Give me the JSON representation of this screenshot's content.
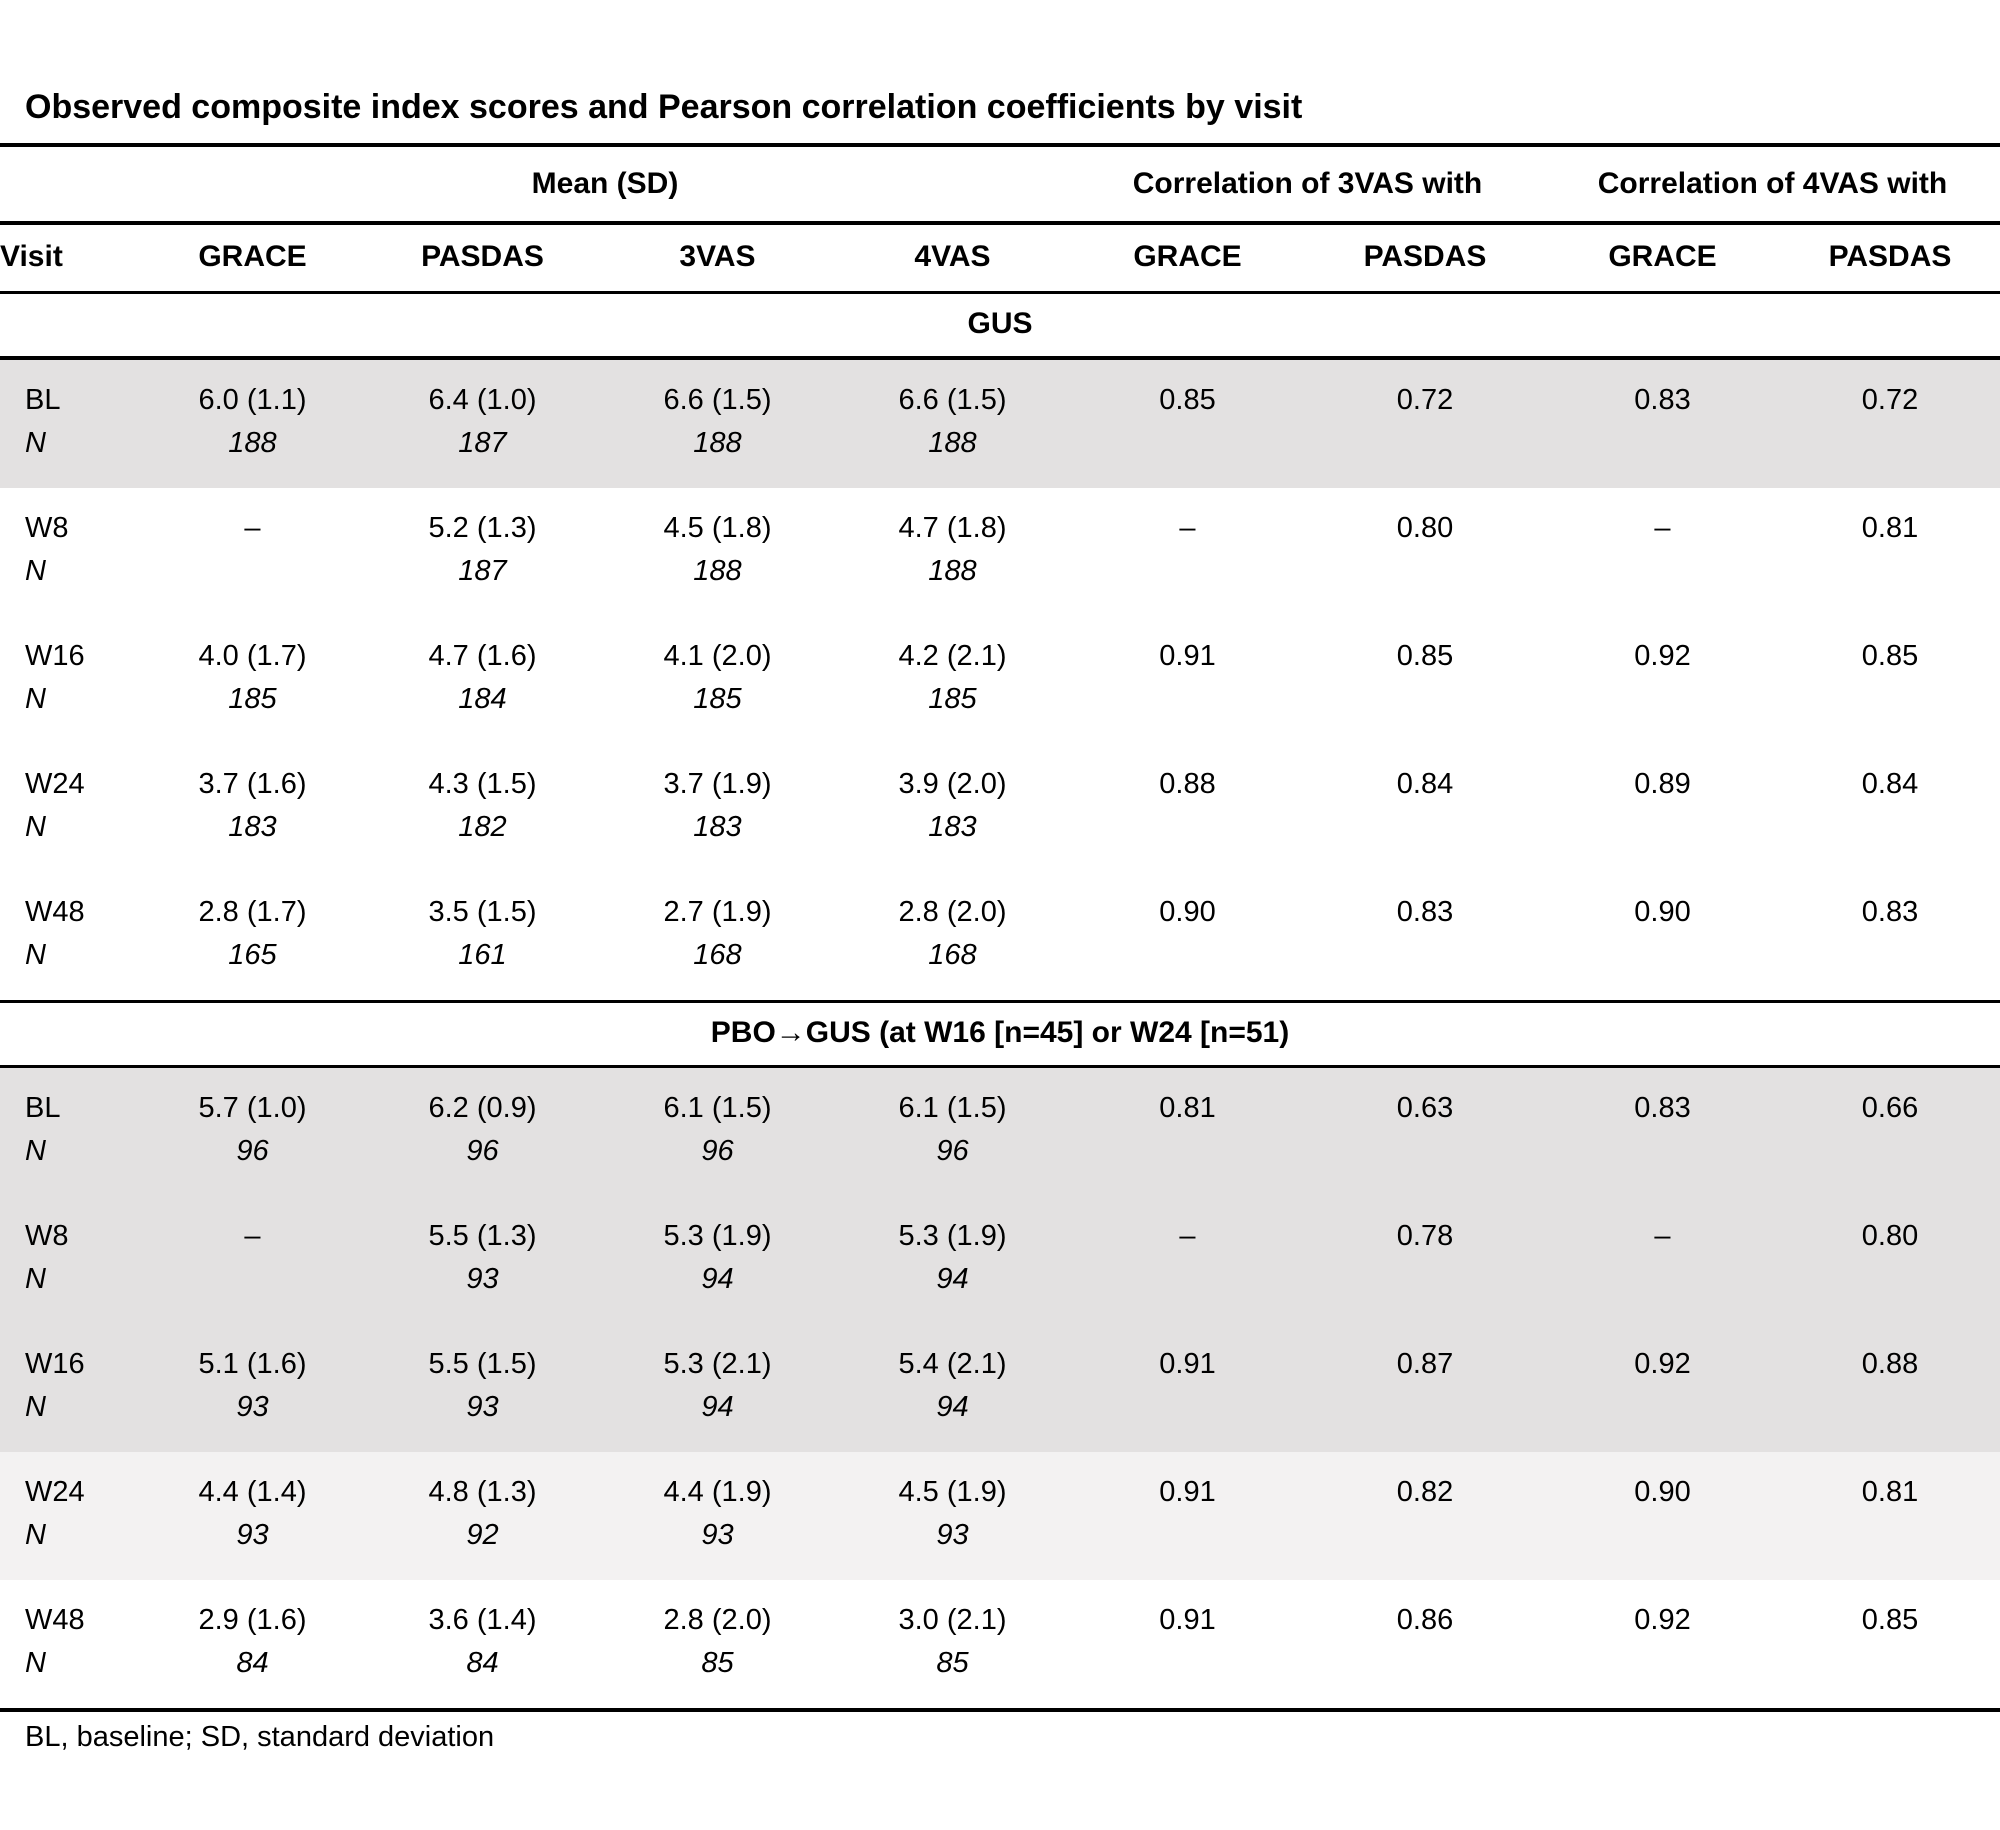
{
  "title": "Observed composite index scores and Pearson correlation coefficients by visit",
  "group_header": {
    "mean": "Mean (SD)",
    "corr3": "Correlation of 3VAS with",
    "corr4": "Correlation of 4VAS with"
  },
  "column_headers": [
    "Visit",
    "GRACE",
    "PASDAS",
    "3VAS",
    "4VAS",
    "GRACE",
    "PASDAS",
    "GRACE",
    "PASDAS"
  ],
  "n_label": "N",
  "footnote": "BL, baseline; SD, standard deviation",
  "colors": {
    "row_shade": "#e3e1e1",
    "row_shade_light": "#f3f2f2",
    "rule": "#000000"
  },
  "sections": [
    {
      "label": "GUS",
      "rows": [
        {
          "visit": "BL",
          "shade": "gray",
          "values": [
            "6.0 (1.1)",
            "6.4 (1.0)",
            "6.6 (1.5)",
            "6.6 (1.5)",
            "0.85",
            "0.72",
            "0.83",
            "0.72"
          ],
          "n": [
            "188",
            "187",
            "188",
            "188"
          ]
        },
        {
          "visit": "W8",
          "shade": "white",
          "values": [
            "–",
            "5.2 (1.3)",
            "4.5 (1.8)",
            "4.7 (1.8)",
            "–",
            "0.80",
            "–",
            "0.81"
          ],
          "n": [
            "",
            "187",
            "188",
            "188"
          ]
        },
        {
          "visit": "W16",
          "shade": "white",
          "values": [
            "4.0 (1.7)",
            "4.7 (1.6)",
            "4.1 (2.0)",
            "4.2 (2.1)",
            "0.91",
            "0.85",
            "0.92",
            "0.85"
          ],
          "n": [
            "185",
            "184",
            "185",
            "185"
          ]
        },
        {
          "visit": "W24",
          "shade": "white",
          "values": [
            "3.7 (1.6)",
            "4.3 (1.5)",
            "3.7 (1.9)",
            "3.9 (2.0)",
            "0.88",
            "0.84",
            "0.89",
            "0.84"
          ],
          "n": [
            "183",
            "182",
            "183",
            "183"
          ]
        },
        {
          "visit": "W48",
          "shade": "white",
          "values": [
            "2.8 (1.7)",
            "3.5 (1.5)",
            "2.7 (1.9)",
            "2.8 (2.0)",
            "0.90",
            "0.83",
            "0.90",
            "0.83"
          ],
          "n": [
            "165",
            "161",
            "168",
            "168"
          ]
        }
      ]
    },
    {
      "label": "PBO→GUS (at W16 [n=45] or W24 [n=51)",
      "rows": [
        {
          "visit": "BL",
          "shade": "gray",
          "values": [
            "5.7 (1.0)",
            "6.2 (0.9)",
            "6.1 (1.5)",
            "6.1 (1.5)",
            "0.81",
            "0.63",
            "0.83",
            "0.66"
          ],
          "n": [
            "96",
            "96",
            "96",
            "96"
          ]
        },
        {
          "visit": "W8",
          "shade": "gray",
          "values": [
            "–",
            "5.5 (1.3)",
            "5.3 (1.9)",
            "5.3 (1.9)",
            "–",
            "0.78",
            "–",
            "0.80"
          ],
          "n": [
            "",
            "93",
            "94",
            "94"
          ]
        },
        {
          "visit": "W16",
          "shade": "gray",
          "values": [
            "5.1 (1.6)",
            "5.5 (1.5)",
            "5.3 (2.1)",
            "5.4 (2.1)",
            "0.91",
            "0.87",
            "0.92",
            "0.88"
          ],
          "n": [
            "93",
            "93",
            "94",
            "94"
          ]
        },
        {
          "visit": "W24",
          "shade": "lightgray",
          "values": [
            "4.4 (1.4)",
            "4.8 (1.3)",
            "4.4 (1.9)",
            "4.5 (1.9)",
            "0.91",
            "0.82",
            "0.90",
            "0.81"
          ],
          "n": [
            "93",
            "92",
            "93",
            "93"
          ]
        },
        {
          "visit": "W48",
          "shade": "white",
          "values": [
            "2.9 (1.6)",
            "3.6 (1.4)",
            "2.8 (2.0)",
            "3.0 (2.1)",
            "0.91",
            "0.86",
            "0.92",
            "0.85"
          ],
          "n": [
            "84",
            "84",
            "85",
            "85"
          ]
        }
      ]
    }
  ]
}
